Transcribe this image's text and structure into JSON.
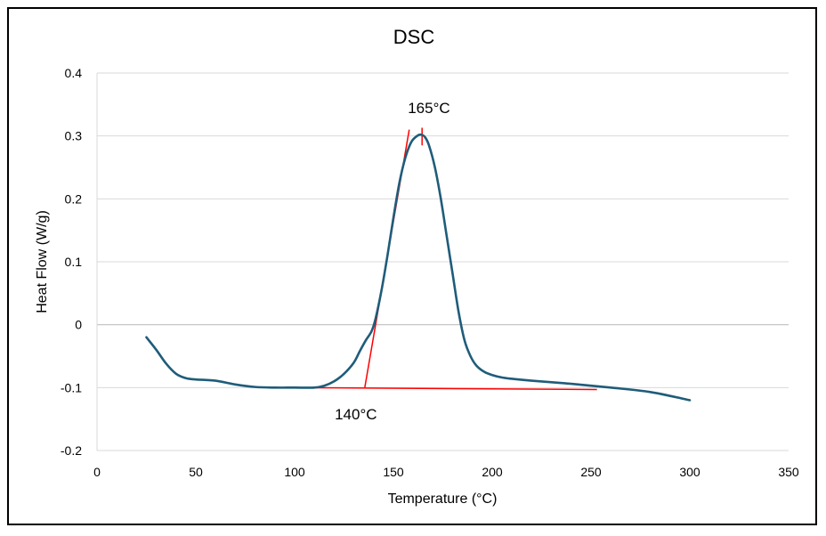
{
  "chart_data": {
    "type": "line",
    "title": "DSC",
    "xlabel": "Temperature (°C)",
    "ylabel": "Heat Flow (W/g)",
    "xlim": [
      0,
      350
    ],
    "ylim": [
      -0.2,
      0.4
    ],
    "x_ticks": [
      0,
      50,
      100,
      150,
      200,
      250,
      300,
      350
    ],
    "y_ticks": [
      -0.2,
      -0.1,
      0,
      0.1,
      0.2,
      0.3,
      0.4
    ],
    "y_tick_labels": [
      "-0.2",
      "-0.1",
      "0",
      "0.1",
      "0.2",
      "0.3",
      "0.4"
    ],
    "grid": true,
    "series": [
      {
        "name": "Heat Flow",
        "color": "#1f5c7a",
        "x": [
          25,
          30,
          35,
          40,
          45,
          50,
          60,
          70,
          80,
          90,
          100,
          110,
          115,
          120,
          125,
          130,
          133,
          136,
          139,
          141,
          144,
          147,
          150,
          153,
          156,
          159,
          162,
          164,
          166,
          168,
          171,
          174,
          177,
          180,
          183,
          186,
          189,
          192,
          196,
          200,
          205,
          210,
          220,
          240,
          260,
          280,
          300
        ],
        "values": [
          -0.02,
          -0.04,
          -0.062,
          -0.078,
          -0.085,
          -0.087,
          -0.089,
          -0.095,
          -0.099,
          -0.1,
          -0.1,
          -0.1,
          -0.097,
          -0.09,
          -0.078,
          -0.06,
          -0.042,
          -0.025,
          -0.01,
          0.01,
          0.055,
          0.11,
          0.17,
          0.225,
          0.265,
          0.29,
          0.3,
          0.302,
          0.298,
          0.285,
          0.25,
          0.2,
          0.14,
          0.08,
          0.02,
          -0.025,
          -0.05,
          -0.065,
          -0.075,
          -0.08,
          -0.084,
          -0.086,
          -0.089,
          -0.094,
          -0.1,
          -0.107,
          -0.12
        ]
      }
    ],
    "annotation_lines": [
      {
        "name": "onset-tangent",
        "color": "#ff0000",
        "x": [
          135.5,
          158
        ],
        "y": [
          -0.1,
          0.31
        ]
      },
      {
        "name": "baseline-tangent",
        "color": "#ff0000",
        "x": [
          97,
          253
        ],
        "y": [
          -0.1,
          -0.103
        ]
      },
      {
        "name": "peak-marker",
        "color": "#ff0000",
        "x": [
          164.5,
          164.5
        ],
        "y": [
          0.313,
          0.285
        ]
      }
    ],
    "annotations": [
      {
        "text": "165°C",
        "x": 168,
        "y": 0.345
      },
      {
        "text": "140°C",
        "x": 131,
        "y": -0.142
      }
    ]
  }
}
